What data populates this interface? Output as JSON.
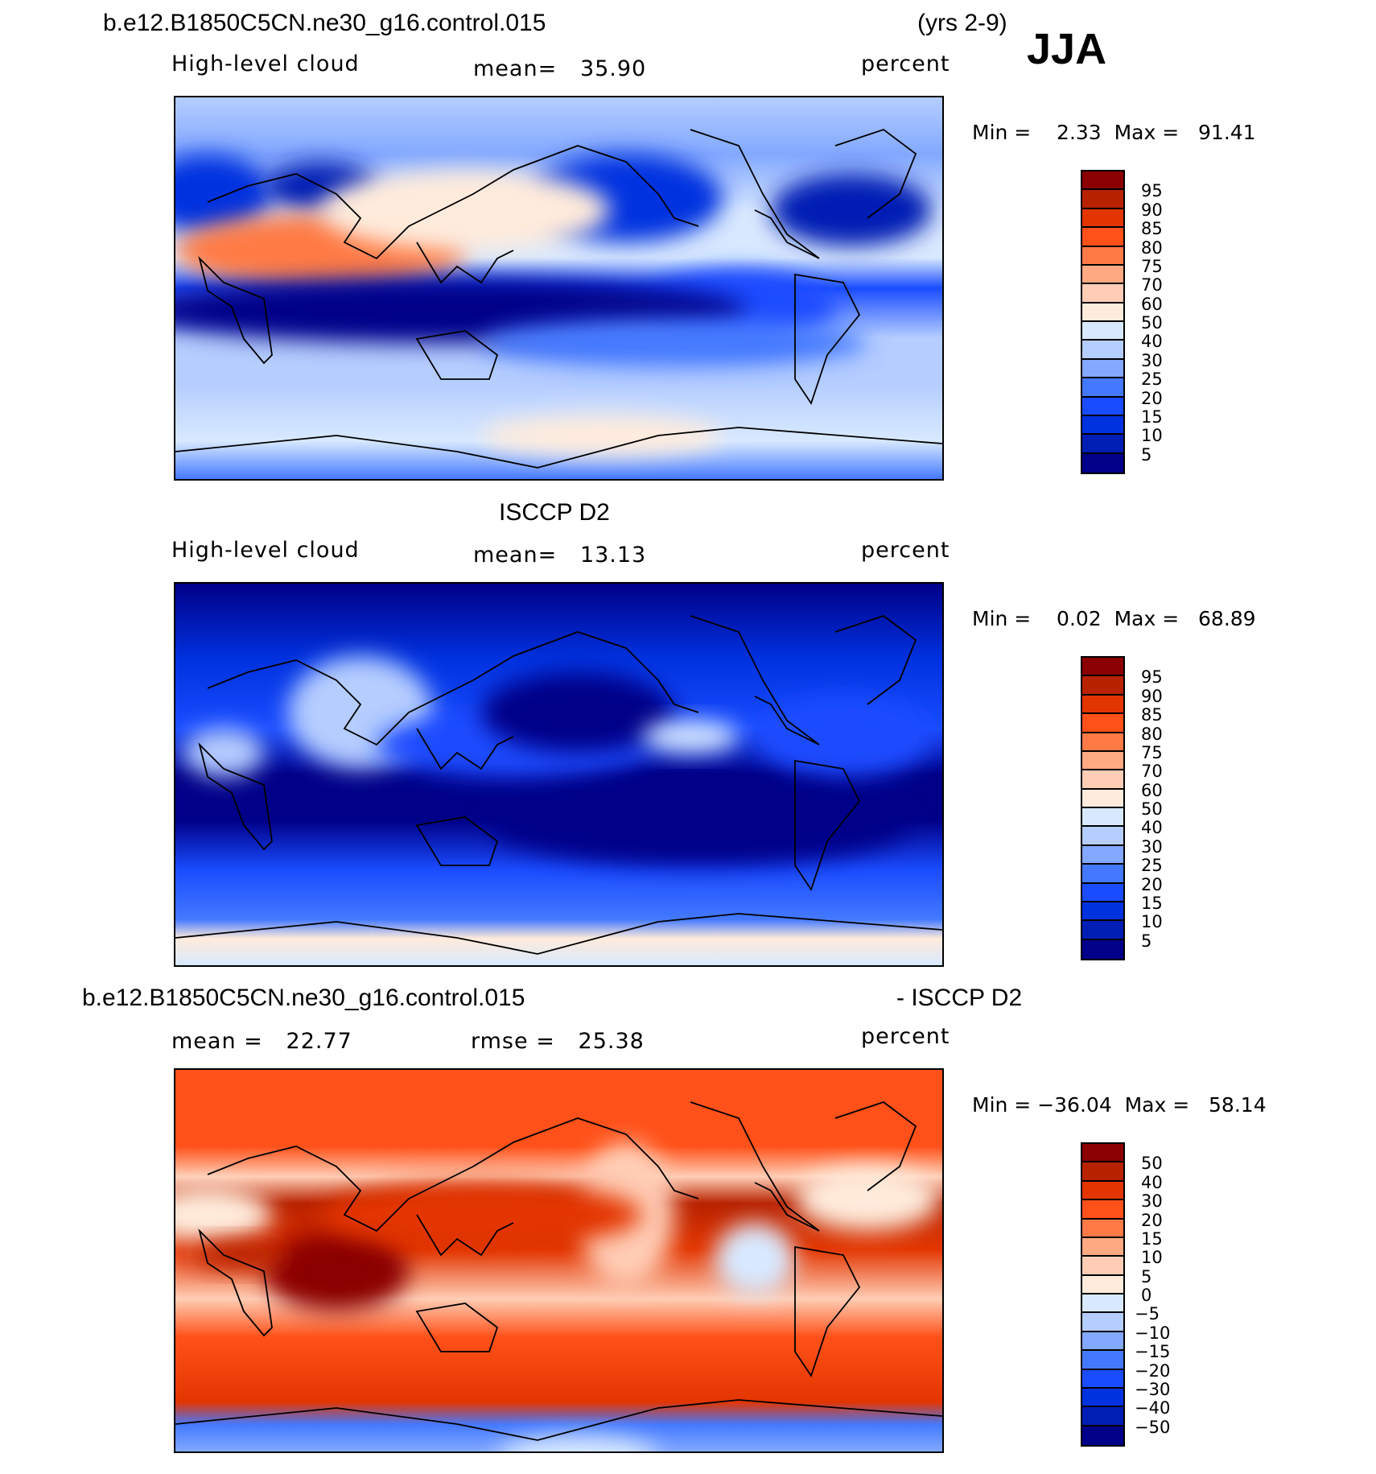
{
  "header": {
    "case": "b.e12.B1850C5CN.ne30_g16.control.015",
    "years": "(yrs 2-9)",
    "season": "JJA"
  },
  "chart_data": [
    {
      "type": "heatmap",
      "title": "b.e12.B1850C5CN.ne30_g16.control.015",
      "variable": "High-level cloud",
      "mean_label": "mean=   35.90",
      "units": "percent",
      "minmax": "Min =    2.33  Max =   91.41",
      "levels": [
        "95",
        "90",
        "85",
        "80",
        "75",
        "70",
        "60",
        "50",
        "40",
        "30",
        "25",
        "20",
        "15",
        "10",
        "5"
      ]
    },
    {
      "type": "heatmap",
      "title": "ISCCP D2",
      "variable": "High-level cloud",
      "mean_label": "mean=   13.13",
      "units": "percent",
      "minmax": "Min =    0.02  Max =   68.89",
      "levels": [
        "95",
        "90",
        "85",
        "80",
        "75",
        "70",
        "60",
        "50",
        "40",
        "30",
        "25",
        "20",
        "15",
        "10",
        "5"
      ]
    },
    {
      "type": "heatmap",
      "title": "b.e12.B1850C5CN.ne30_g16.control.015",
      "title_right": "- ISCCP D2",
      "mean_label": "mean =   22.77",
      "rmse_label": "rmse =   25.38",
      "units": "percent",
      "minmax": "Min = −36.04  Max =   58.14",
      "levels": [
        "50",
        "40",
        "30",
        "20",
        "15",
        "10",
        "5",
        "0",
        "−5",
        "−10",
        "−15",
        "−20",
        "−30",
        "−40",
        "−50"
      ]
    }
  ],
  "colors": [
    "#8b0000",
    "#b82200",
    "#e33500",
    "#ff5119",
    "#ff7a45",
    "#ffaa82",
    "#ffcdb5",
    "#ffebdb",
    "#d8e9ff",
    "#b5cdff",
    "#82a8ff",
    "#4479ff",
    "#1a4cff",
    "#0032e0",
    "#001eb4",
    "#000088"
  ]
}
